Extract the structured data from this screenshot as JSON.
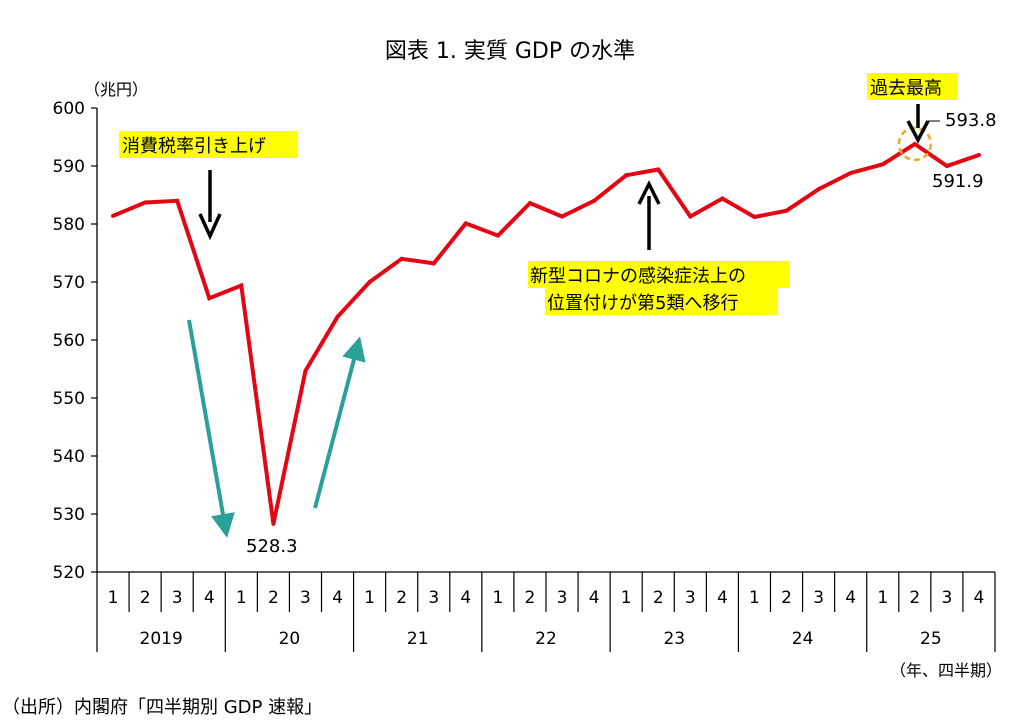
{
  "chart_data": {
    "type": "line",
    "title": "図表 1. 実質 GDP の水準",
    "ylabel": "（兆円）",
    "xlabel": "（年、四半期）",
    "source": "（出所）内閣府「四半期別 GDP 速報」",
    "ylim": [
      520,
      600
    ],
    "yticks": [
      "600",
      "590",
      "580",
      "570",
      "560",
      "550",
      "540",
      "530",
      "520"
    ],
    "quarters": [
      "1",
      "2",
      "3",
      "4",
      "1",
      "2",
      "3",
      "4",
      "1",
      "2",
      "3",
      "4",
      "1",
      "2",
      "3",
      "4",
      "1",
      "2",
      "3",
      "4",
      "1",
      "2",
      "3",
      "4",
      "1",
      "2",
      "3",
      "4"
    ],
    "years": [
      "2019",
      "20",
      "21",
      "22",
      "23",
      "24",
      "25"
    ],
    "series": [
      {
        "name": "実質GDP",
        "color": "#e30613",
        "values": [
          581.4,
          583.7,
          584.0,
          567.2,
          569.4,
          528.3,
          554.7,
          564.0,
          570.0,
          574.0,
          573.2,
          580.1,
          578.0,
          583.6,
          581.3,
          584.0,
          588.4,
          589.4,
          581.3,
          584.4,
          581.2,
          582.3,
          586.0,
          588.8,
          590.3,
          593.8,
          590.0,
          591.9
        ]
      }
    ],
    "labels": {
      "min": "528.3",
      "peak": "593.8",
      "last": "591.9"
    },
    "annotations": {
      "tax": "消費税率引き上げ",
      "covid_line1": "新型コロナの感染症法上の",
      "covid_line2": "位置付けが第5類へ移行",
      "record": "過去最高"
    },
    "colors": {
      "line": "#e30613",
      "highlight": "#ffff00",
      "trend_arrow": "#2aa198",
      "circle": "#f5a623"
    }
  }
}
